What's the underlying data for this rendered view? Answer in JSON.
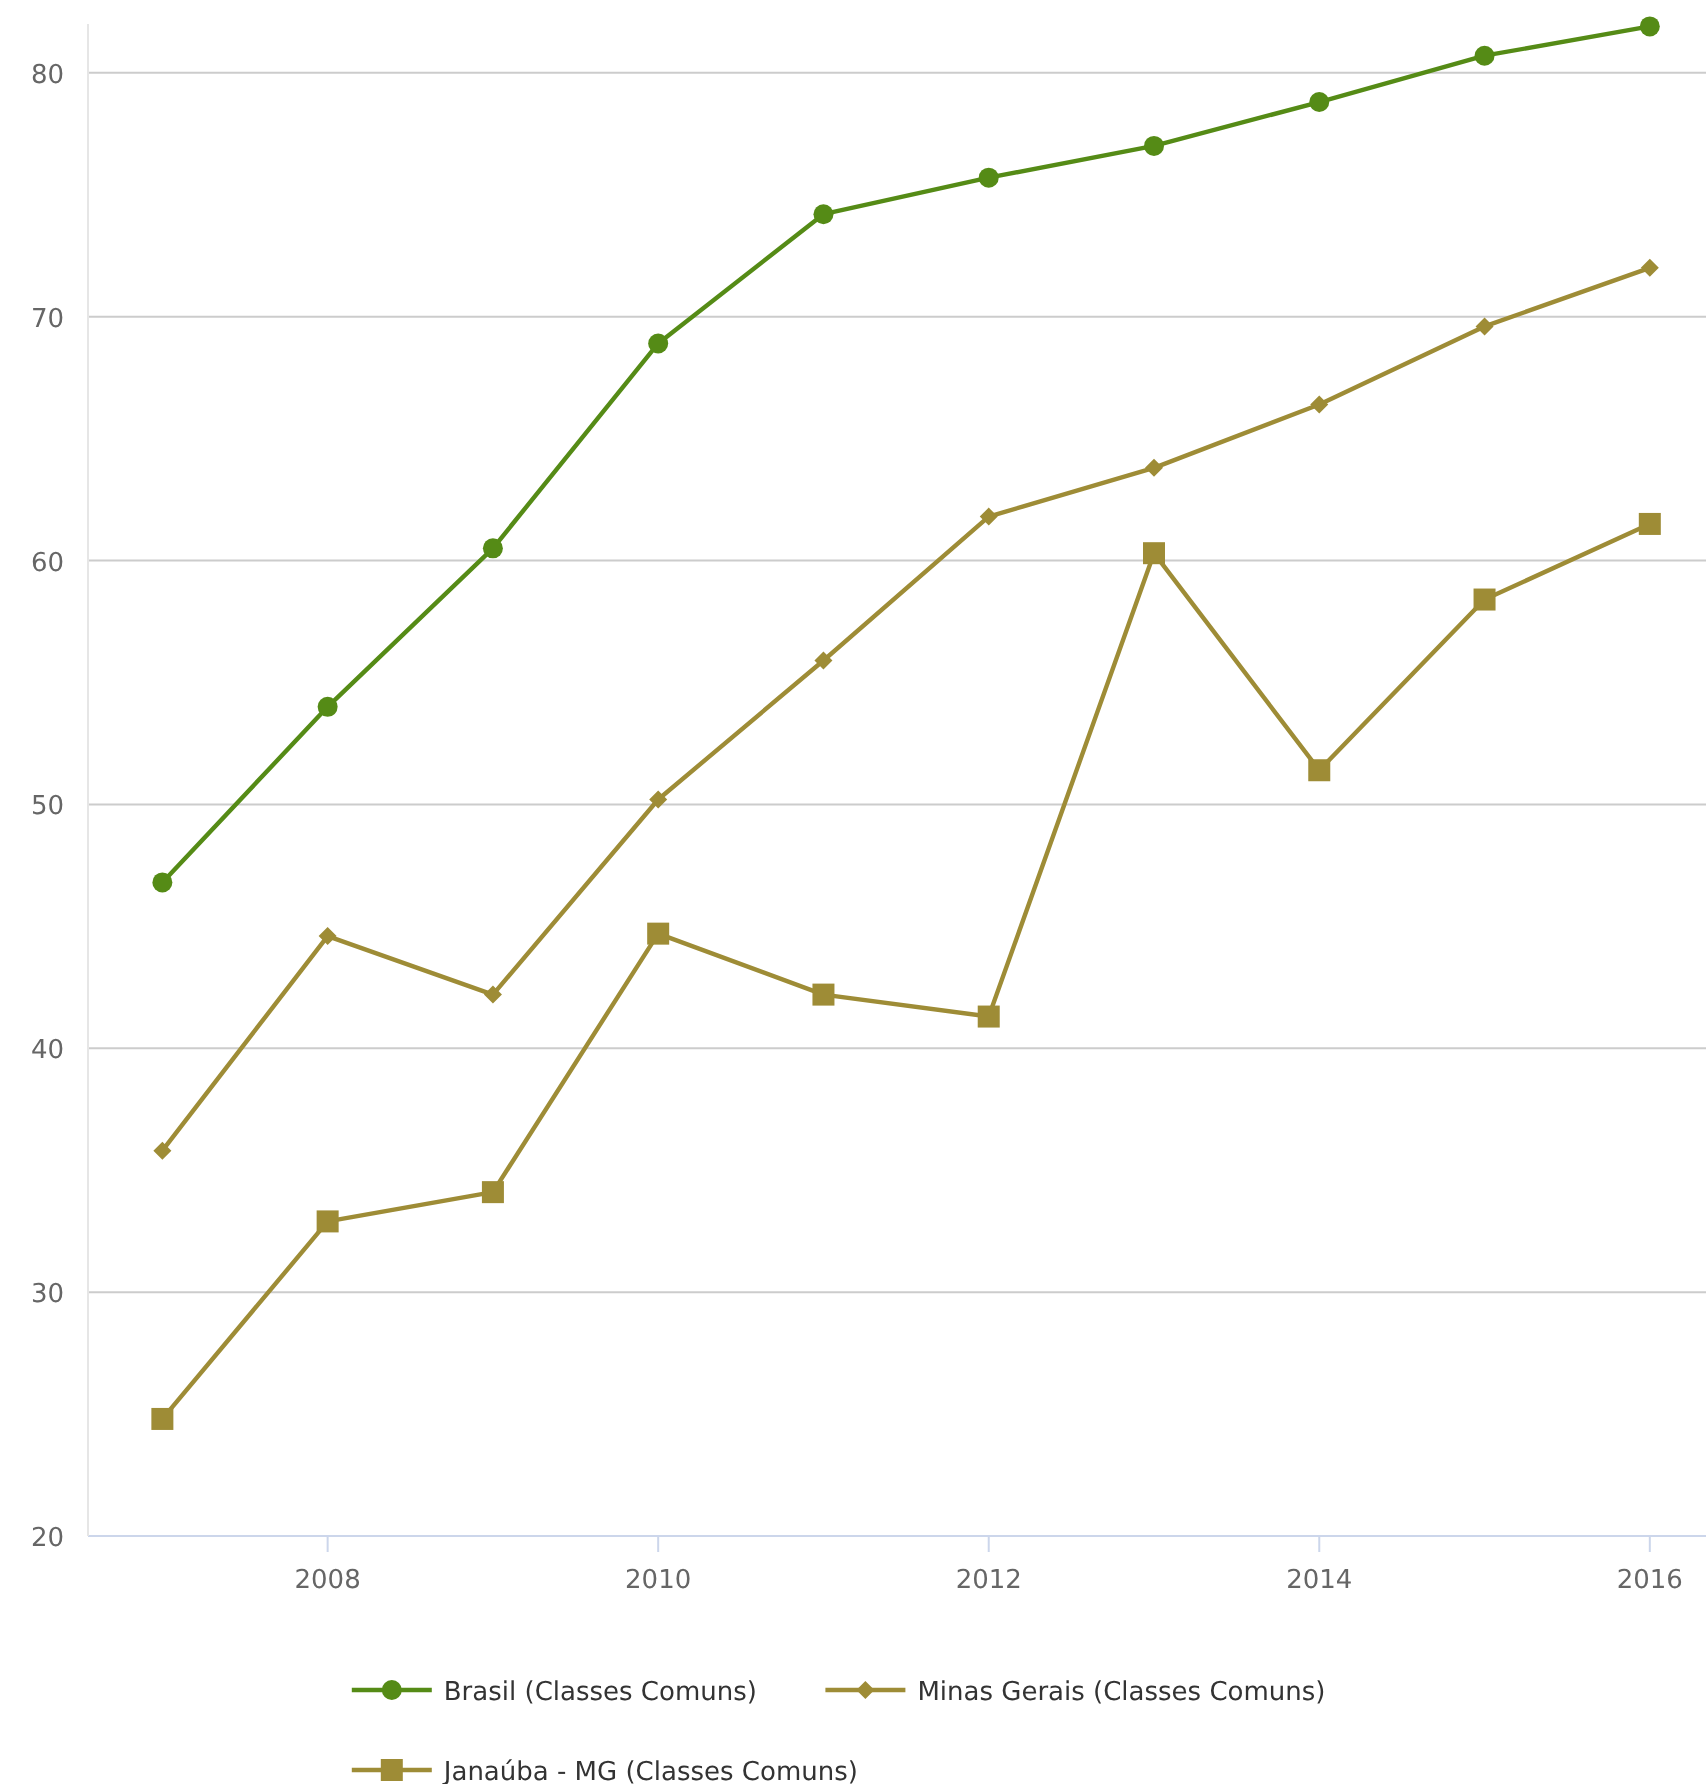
{
  "chart_data": {
    "type": "line",
    "x": [
      2007,
      2008,
      2009,
      2010,
      2011,
      2012,
      2013,
      2014,
      2015,
      2016
    ],
    "xlim": [
      2006.55,
      2016.34
    ],
    "xticks": [
      2008,
      2010,
      2012,
      2014,
      2016
    ],
    "ylim": [
      20,
      82
    ],
    "yticks": [
      20,
      30,
      40,
      50,
      60,
      70,
      80
    ],
    "grid": "y",
    "legend": "bottom",
    "series": [
      {
        "name": "Brasil (Classes Comuns)",
        "color": "#558b16",
        "marker": "circle",
        "values": [
          46.8,
          54.0,
          60.5,
          68.9,
          74.2,
          75.7,
          77.0,
          78.8,
          80.7,
          81.9
        ]
      },
      {
        "name": "Minas Gerais (Classes Comuns)",
        "color": "#9e8c36",
        "marker": "diamond",
        "values": [
          35.8,
          44.6,
          42.2,
          50.2,
          55.9,
          61.8,
          63.8,
          66.4,
          69.6,
          72.0
        ]
      },
      {
        "name": "Janaúba - MG (Classes Comuns)",
        "color": "#9e8c36",
        "marker": "square",
        "values": [
          24.8,
          32.9,
          34.1,
          44.7,
          42.2,
          41.3,
          60.3,
          51.4,
          58.4,
          61.5
        ]
      }
    ]
  }
}
